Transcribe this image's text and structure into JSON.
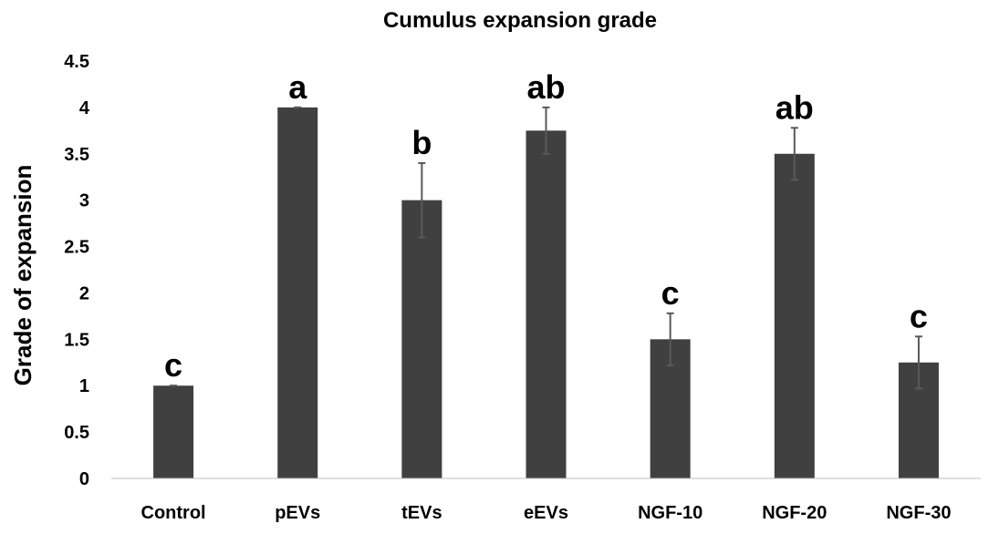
{
  "chart_data": {
    "type": "bar",
    "title": "Cumulus expansion grade",
    "xlabel": "",
    "ylabel": "Grade of expansion",
    "ylim": [
      0,
      4.5
    ],
    "yticks": [
      "0",
      "0.5",
      "1",
      "1.5",
      "2",
      "2.5",
      "3",
      "3.5",
      "4",
      "4.5"
    ],
    "categories": [
      "Control",
      "pEVs",
      "tEVs",
      "eEVs",
      "NGF-10",
      "NGF-20",
      "NGF-30"
    ],
    "values": [
      1.0,
      4.0,
      3.0,
      3.75,
      1.5,
      3.5,
      1.25
    ],
    "errors": [
      0.0,
      0.0,
      0.4,
      0.25,
      0.28,
      0.28,
      0.28
    ],
    "significance": [
      "c",
      "a",
      "b",
      "ab",
      "c",
      "ab",
      "c"
    ],
    "grid": false,
    "bar_color": "#404040",
    "error_color": "#595959"
  }
}
